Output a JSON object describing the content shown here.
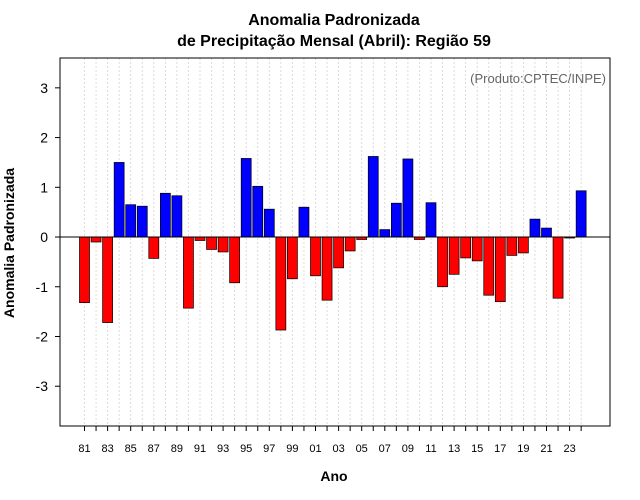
{
  "chart_data": {
    "type": "bar",
    "title_line1": "Anomalia Padronizada",
    "title_line2": "de Precipitação Mensal (Abril): Região 59",
    "xlabel": "Ano",
    "ylabel": "Anomalia Padronizada",
    "annotation": "(Produto:CPTEC/INPE)",
    "ylim": [
      -3.8,
      3.6
    ],
    "yticks": [
      -3,
      -2,
      -1,
      0,
      1,
      2,
      3
    ],
    "ytick_labels": [
      "-3",
      "-2",
      "-1",
      "0",
      "1",
      "2",
      "3"
    ],
    "x_tick_labels": [
      "81",
      "83",
      "85",
      "87",
      "89",
      "91",
      "93",
      "95",
      "97",
      "99",
      "01",
      "03",
      "05",
      "07",
      "09",
      "11",
      "13",
      "15",
      "17",
      "19",
      "21",
      "23"
    ],
    "categories": [
      "1981",
      "1982",
      "1983",
      "1984",
      "1985",
      "1986",
      "1987",
      "1988",
      "1989",
      "1990",
      "1991",
      "1992",
      "1993",
      "1994",
      "1995",
      "1996",
      "1997",
      "1998",
      "1999",
      "2000",
      "2001",
      "2002",
      "2003",
      "2004",
      "2005",
      "2006",
      "2007",
      "2008",
      "2009",
      "2010",
      "2011",
      "2012",
      "2013",
      "2014",
      "2015",
      "2016",
      "2017",
      "2018",
      "2019",
      "2020",
      "2021",
      "2022",
      "2023",
      "2024"
    ],
    "values": [
      -1.32,
      -0.1,
      -1.72,
      1.5,
      0.65,
      0.62,
      -0.43,
      0.88,
      0.83,
      -1.43,
      -0.07,
      -0.25,
      -0.3,
      -0.92,
      1.58,
      1.02,
      0.56,
      -1.87,
      -0.84,
      0.6,
      -0.78,
      -1.27,
      -0.62,
      -0.28,
      -0.05,
      1.62,
      0.15,
      0.68,
      1.57,
      -0.05,
      0.69,
      -1.0,
      -0.75,
      -0.42,
      -0.48,
      -1.17,
      -1.3,
      -0.37,
      -0.32,
      0.36,
      0.18,
      -1.23,
      -0.02,
      0.93
    ],
    "colors": {
      "positive": "#0000ff",
      "negative": "#ff0000",
      "outline": "#000000",
      "grid": "#d3d3d3"
    }
  }
}
